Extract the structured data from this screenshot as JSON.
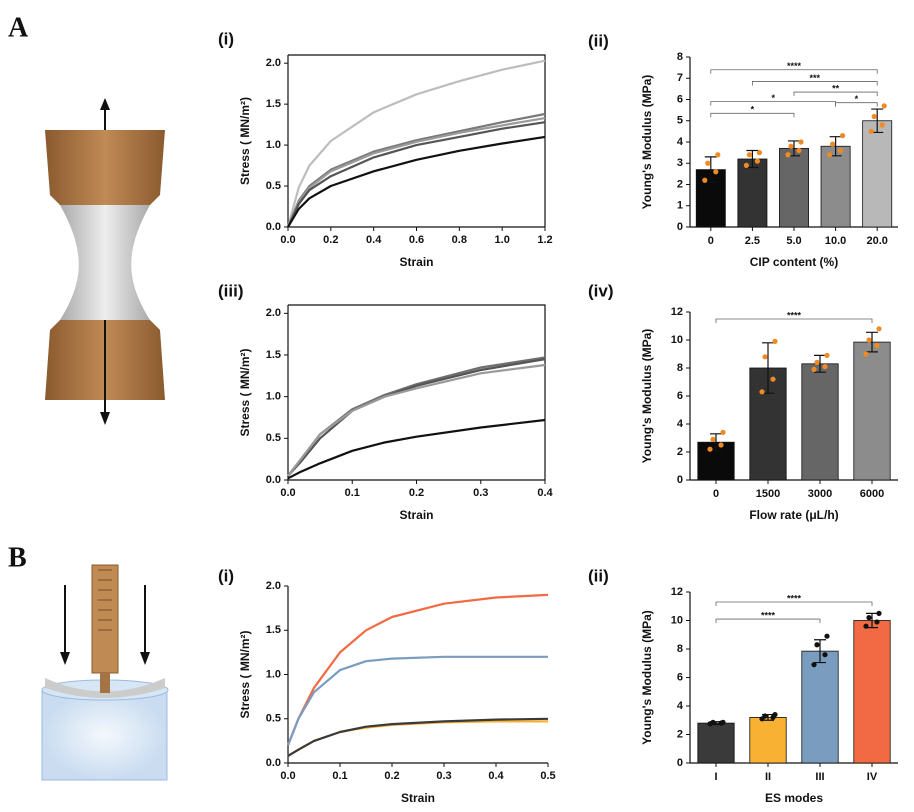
{
  "panel_labels": [
    "A",
    "B"
  ],
  "chart_data": [
    {
      "type": "line",
      "label": "(i)",
      "xlabel": "Strain",
      "ylabel": "Stress ( MN/m²)",
      "xlim": [
        0,
        1.2
      ],
      "xticks": [
        {
          "value": 0,
          "label": "0.0"
        },
        0.2,
        0.4,
        0.6,
        0.8,
        {
          "value": 1,
          "label": "1.0"
        },
        1.2
      ],
      "ylim": [
        0,
        2.1
      ],
      "yticks": [
        {
          "value": 0,
          "label": "0.0"
        },
        0.5,
        {
          "value": 1,
          "label": "1.0"
        },
        1.5,
        {
          "value": 2,
          "label": "2.0"
        }
      ],
      "x": [
        0,
        0.05,
        0.1,
        0.2,
        0.4,
        0.6,
        0.8,
        1.0,
        1.2
      ],
      "series": [
        {
          "color": "#bdbdbd",
          "values": [
            0,
            0.48,
            0.75,
            1.05,
            1.4,
            1.62,
            1.78,
            1.92,
            2.03
          ]
        },
        {
          "color": "#7a7a7a",
          "values": [
            0,
            0.32,
            0.5,
            0.7,
            0.92,
            1.06,
            1.17,
            1.28,
            1.38
          ]
        },
        {
          "color": "#9a9a9a",
          "values": [
            0,
            0.3,
            0.48,
            0.68,
            0.9,
            1.04,
            1.15,
            1.24,
            1.33
          ]
        },
        {
          "color": "#555555",
          "values": [
            0,
            0.28,
            0.45,
            0.62,
            0.85,
            1.0,
            1.1,
            1.2,
            1.28
          ]
        },
        {
          "color": "#111111",
          "values": [
            0,
            0.22,
            0.35,
            0.5,
            0.68,
            0.82,
            0.93,
            1.02,
            1.1
          ]
        }
      ]
    },
    {
      "type": "bar",
      "label": "(ii)",
      "xlabel": "CIP content (%)",
      "ylabel": "Young's Modulus (MPa)",
      "ylim": [
        0,
        8
      ],
      "yticks": [
        0,
        1,
        2,
        3,
        4,
        5,
        6,
        7,
        8
      ],
      "categories": [
        "0",
        "2.5",
        "5.0",
        "10.0",
        "20.0"
      ],
      "values": [
        2.7,
        3.2,
        3.7,
        3.8,
        5.0
      ],
      "errors": [
        0.6,
        0.4,
        0.35,
        0.45,
        0.55
      ],
      "colors": [
        "#0a0a0a",
        "#333333",
        "#666666",
        "#8c8c8c",
        "#b8b8b8"
      ],
      "point_color": "#f08a24",
      "points": [
        [
          2.2,
          2.6,
          3.0,
          3.4
        ],
        [
          2.9,
          3.1,
          3.4,
          3.5
        ],
        [
          3.4,
          3.6,
          3.8,
          4.0
        ],
        [
          3.4,
          3.6,
          3.9,
          4.3
        ],
        [
          4.5,
          4.8,
          5.2,
          5.7
        ]
      ],
      "significance": [
        "****",
        "***",
        "**",
        "*",
        "*",
        "*"
      ]
    },
    {
      "type": "line",
      "label": "(iii)",
      "xlabel": "Strain",
      "ylabel": "Stress ( MN/m²)",
      "xlim": [
        0,
        0.4
      ],
      "xticks": [
        {
          "value": 0,
          "label": "0.0"
        },
        0.1,
        0.2,
        0.3,
        0.4
      ],
      "ylim": [
        0,
        2.1
      ],
      "yticks": [
        {
          "value": 0,
          "label": "0.0"
        },
        0.5,
        {
          "value": 1,
          "label": "1.0"
        },
        1.5,
        {
          "value": 2,
          "label": "2.0"
        }
      ],
      "x": [
        0,
        0.02,
        0.05,
        0.1,
        0.15,
        0.2,
        0.3,
        0.4
      ],
      "series": [
        {
          "color": "#6e6e6e",
          "values": [
            0.05,
            0.25,
            0.55,
            0.85,
            1.02,
            1.15,
            1.35,
            1.47
          ]
        },
        {
          "color": "#555555",
          "values": [
            0.05,
            0.22,
            0.5,
            0.83,
            1.0,
            1.13,
            1.32,
            1.45
          ]
        },
        {
          "color": "#9a9a9a",
          "values": [
            0.05,
            0.25,
            0.55,
            0.83,
            1.0,
            1.1,
            1.28,
            1.38
          ]
        },
        {
          "color": "#111111",
          "values": [
            0.02,
            0.1,
            0.2,
            0.35,
            0.45,
            0.52,
            0.63,
            0.72
          ]
        }
      ]
    },
    {
      "type": "bar",
      "label": "(iv)",
      "xlabel": "Flow rate (μL/h)",
      "ylabel": "Young's Modulus (MPa)",
      "ylim": [
        0,
        12
      ],
      "yticks": [
        0,
        2,
        4,
        6,
        8,
        10,
        12
      ],
      "categories": [
        "0",
        "1500",
        "3000",
        "6000"
      ],
      "values": [
        2.7,
        8.0,
        8.3,
        9.85
      ],
      "errors": [
        0.6,
        1.8,
        0.6,
        0.7
      ],
      "colors": [
        "#0a0a0a",
        "#333333",
        "#666666",
        "#8c8c8c"
      ],
      "point_color": "#f08a24",
      "points": [
        [
          2.2,
          2.5,
          2.9,
          3.4
        ],
        [
          6.3,
          7.2,
          8.8,
          9.9
        ],
        [
          7.9,
          8.1,
          8.4,
          8.9
        ],
        [
          9.0,
          9.6,
          10.0,
          10.8
        ]
      ],
      "significance": [
        "****"
      ]
    },
    {
      "type": "line",
      "label": "(i)",
      "xlabel": "Strain",
      "ylabel": "Stress ( MN/m²)",
      "xlim": [
        0,
        0.5
      ],
      "xticks": [
        {
          "value": 0,
          "label": "0.0"
        },
        0.1,
        0.2,
        0.3,
        0.4,
        0.5
      ],
      "ylim": [
        0,
        2
      ],
      "yticks": [
        {
          "value": 0,
          "label": "0.0"
        },
        0.5,
        {
          "value": 1,
          "label": "1.0"
        },
        1.5,
        {
          "value": 2,
          "label": "2.0"
        }
      ],
      "x": [
        0,
        0.02,
        0.05,
        0.1,
        0.15,
        0.2,
        0.3,
        0.4,
        0.5
      ],
      "series": [
        {
          "color": "#f26a43",
          "values": [
            0.2,
            0.5,
            0.85,
            1.25,
            1.5,
            1.65,
            1.8,
            1.87,
            1.9
          ]
        },
        {
          "color": "#7a9cbf",
          "values": [
            0.2,
            0.5,
            0.8,
            1.05,
            1.15,
            1.18,
            1.2,
            1.2,
            1.2
          ]
        },
        {
          "color": "#f8b133",
          "values": [
            0.08,
            0.15,
            0.25,
            0.35,
            0.4,
            0.43,
            0.46,
            0.47,
            0.47
          ]
        },
        {
          "color": "#3a3a3a",
          "values": [
            0.08,
            0.15,
            0.25,
            0.35,
            0.41,
            0.44,
            0.47,
            0.49,
            0.5
          ]
        }
      ]
    },
    {
      "type": "bar",
      "label": "(ii)",
      "xlabel": "ES modes",
      "ylabel": "Young's Modulus (MPa)",
      "ylim": [
        0,
        12
      ],
      "yticks": [
        0,
        2,
        4,
        6,
        8,
        10,
        12
      ],
      "categories": [
        "I",
        "II",
        "III",
        "IV"
      ],
      "values": [
        2.8,
        3.2,
        7.85,
        10.0
      ],
      "errors": [
        0.1,
        0.2,
        0.8,
        0.5
      ],
      "colors": [
        "#3a3a3a",
        "#f8b133",
        "#7a9cbf",
        "#f26a43"
      ],
      "point_color": "#111111",
      "points": [
        [
          2.75,
          2.8,
          2.85,
          2.85
        ],
        [
          3.1,
          3.2,
          3.3,
          3.4
        ],
        [
          6.9,
          7.6,
          8.3,
          8.9
        ],
        [
          9.6,
          9.9,
          10.2,
          10.5
        ]
      ],
      "significance": [
        "****",
        "****"
      ]
    }
  ]
}
